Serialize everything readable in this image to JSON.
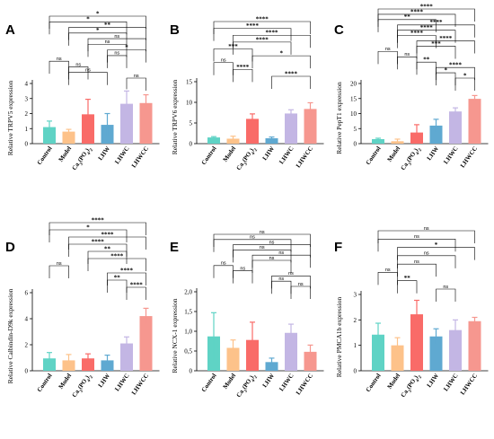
{
  "figure": {
    "colors": [
      "#5fd3c5",
      "#fdc28a",
      "#f96b68",
      "#5fa9d1",
      "#c3b6e4",
      "#f6978f"
    ]
  },
  "chart_data": [
    {
      "type": "bar",
      "panel": "A",
      "title": "",
      "ylabel": "Relative TRPV5 expression",
      "categories": [
        "Control",
        "Model",
        "Ca3(PO4)2",
        "LHW",
        "LHWC",
        "LHWCC"
      ],
      "values": [
        1.1,
        0.8,
        1.95,
        1.25,
        2.65,
        2.7
      ],
      "errors": [
        0.4,
        0.15,
        1.0,
        0.75,
        0.85,
        0.55
      ],
      "ylim": [
        0,
        4
      ],
      "yticks": [
        0,
        1,
        2,
        3,
        4
      ],
      "comparisons": [
        {
          "a": 0,
          "b": 5,
          "label": "*"
        },
        {
          "a": 0,
          "b": 4,
          "label": "*"
        },
        {
          "a": 1,
          "b": 5,
          "label": "**"
        },
        {
          "a": 1,
          "b": 4,
          "label": "*"
        },
        {
          "a": 2,
          "b": 5,
          "label": "ns"
        },
        {
          "a": 2,
          "b": 4,
          "label": "ns"
        },
        {
          "a": 3,
          "b": 5,
          "label": "*"
        },
        {
          "a": 3,
          "b": 4,
          "label": "ns"
        },
        {
          "a": 0,
          "b": 1,
          "label": "ns"
        },
        {
          "a": 1,
          "b": 2,
          "label": "ns"
        },
        {
          "a": 1,
          "b": 3,
          "label": "ns"
        },
        {
          "a": 4,
          "b": 5,
          "label": "ns"
        }
      ]
    },
    {
      "type": "bar",
      "panel": "B",
      "title": "",
      "ylabel": "Relative TRPV6 expression",
      "categories": [
        "Control",
        "Model",
        "Ca3(PO4)2",
        "LHW",
        "LHWC",
        "LHWCC"
      ],
      "values": [
        1.5,
        1.2,
        6.0,
        1.3,
        7.3,
        8.4
      ],
      "errors": [
        0.2,
        0.6,
        1.2,
        0.3,
        0.9,
        1.5
      ],
      "ylim": [
        0,
        15
      ],
      "yticks": [
        0,
        5,
        10,
        15
      ],
      "comparisons": [
        {
          "a": 0,
          "b": 5,
          "label": "****"
        },
        {
          "a": 0,
          "b": 4,
          "label": "****"
        },
        {
          "a": 1,
          "b": 5,
          "label": "****"
        },
        {
          "a": 1,
          "b": 4,
          "label": "****"
        },
        {
          "a": 0,
          "b": 2,
          "label": "***"
        },
        {
          "a": 2,
          "b": 5,
          "label": "*"
        },
        {
          "a": 0,
          "b": 1,
          "label": "ns"
        },
        {
          "a": 1,
          "b": 2,
          "label": "****"
        },
        {
          "a": 3,
          "b": 5,
          "label": "****"
        }
      ]
    },
    {
      "type": "bar",
      "panel": "C",
      "title": "",
      "ylabel": "Relative PepT1 expression",
      "categories": [
        "Control",
        "Model",
        "Ca3(PO4)2",
        "LHW",
        "LHWC",
        "LHWCC"
      ],
      "values": [
        1.5,
        0.8,
        3.7,
        6.0,
        10.7,
        14.9
      ],
      "errors": [
        0.3,
        0.7,
        2.6,
        2.1,
        1.2,
        1.1
      ],
      "ylim": [
        0,
        20
      ],
      "yticks": [
        0,
        5,
        10,
        15,
        20
      ],
      "comparisons": [
        {
          "a": 0,
          "b": 5,
          "label": "****"
        },
        {
          "a": 0,
          "b": 4,
          "label": "****"
        },
        {
          "a": 0,
          "b": 3,
          "label": "**"
        },
        {
          "a": 1,
          "b": 5,
          "label": "****"
        },
        {
          "a": 1,
          "b": 4,
          "label": "****"
        },
        {
          "a": 1,
          "b": 3,
          "label": "****"
        },
        {
          "a": 2,
          "b": 5,
          "label": "****"
        },
        {
          "a": 2,
          "b": 4,
          "label": "***"
        },
        {
          "a": 0,
          "b": 1,
          "label": "ns"
        },
        {
          "a": 1,
          "b": 2,
          "label": "ns"
        },
        {
          "a": 2,
          "b": 3,
          "label": "**"
        },
        {
          "a": 3,
          "b": 5,
          "label": "****"
        },
        {
          "a": 3,
          "b": 4,
          "label": "*"
        },
        {
          "a": 4,
          "b": 5,
          "label": "*"
        }
      ]
    },
    {
      "type": "bar",
      "panel": "D",
      "title": "",
      "ylabel": "Relative Calbindin-D9k expression",
      "categories": [
        "Control",
        "Model",
        "Ca3(PO4)2",
        "LHW",
        "LHWC",
        "LHWCC"
      ],
      "values": [
        0.95,
        0.8,
        0.95,
        0.8,
        2.1,
        4.2
      ],
      "errors": [
        0.45,
        0.45,
        0.35,
        0.4,
        0.5,
        0.6
      ],
      "ylim": [
        0,
        6
      ],
      "yticks": [
        0,
        2,
        4,
        6
      ],
      "comparisons": [
        {
          "a": 0,
          "b": 5,
          "label": "****"
        },
        {
          "a": 0,
          "b": 4,
          "label": "*"
        },
        {
          "a": 1,
          "b": 5,
          "label": "****"
        },
        {
          "a": 1,
          "b": 4,
          "label": "****"
        },
        {
          "a": 2,
          "b": 4,
          "label": "**"
        },
        {
          "a": 2,
          "b": 5,
          "label": "****"
        },
        {
          "a": 0,
          "b": 1,
          "label": "ns"
        },
        {
          "a": 3,
          "b": 5,
          "label": "****"
        },
        {
          "a": 3,
          "b": 4,
          "label": "**"
        },
        {
          "a": 4,
          "b": 5,
          "label": "****"
        }
      ]
    },
    {
      "type": "bar",
      "panel": "E",
      "title": "",
      "ylabel": "Relative NCX-1 expression",
      "categories": [
        "Control",
        "Model",
        "Ca3(PO4)2",
        "LHW",
        "LHWC",
        "LHWCC"
      ],
      "values": [
        0.87,
        0.58,
        0.78,
        0.22,
        0.96,
        0.48
      ],
      "errors": [
        0.6,
        0.2,
        0.45,
        0.1,
        0.22,
        0.17
      ],
      "ylim": [
        0,
        2.0
      ],
      "yticks": [
        0,
        0.5,
        1.0,
        1.5,
        2.0
      ],
      "yticklabels": [
        "0",
        "0,5",
        "1,0",
        "1,5",
        "2,0"
      ],
      "comparisons": [
        {
          "a": 0,
          "b": 5,
          "label": "ns"
        },
        {
          "a": 0,
          "b": 4,
          "label": "ns"
        },
        {
          "a": 1,
          "b": 5,
          "label": "ns"
        },
        {
          "a": 1,
          "b": 4,
          "label": "ns"
        },
        {
          "a": 2,
          "b": 5,
          "label": "ns"
        },
        {
          "a": 2,
          "b": 4,
          "label": "ns"
        },
        {
          "a": 0,
          "b": 1,
          "label": "ns"
        },
        {
          "a": 1,
          "b": 2,
          "label": "ns"
        },
        {
          "a": 3,
          "b": 5,
          "label": "ns"
        },
        {
          "a": 3,
          "b": 4,
          "label": "ns"
        },
        {
          "a": 4,
          "b": 5,
          "label": "ns"
        }
      ]
    },
    {
      "type": "bar",
      "panel": "F",
      "title": "",
      "ylabel": "Relative PMCA1b expression",
      "categories": [
        "Control",
        "Model",
        "Ca3(PO4)2",
        "LHW",
        "LHWC",
        "LHWCC"
      ],
      "values": [
        1.42,
        1.0,
        2.22,
        1.35,
        1.6,
        1.95
      ],
      "errors": [
        0.45,
        0.3,
        0.55,
        0.3,
        0.4,
        0.15
      ],
      "ylim": [
        0,
        3
      ],
      "yticks": [
        0,
        1,
        2,
        3
      ],
      "comparisons": [
        {
          "a": 0,
          "b": 5,
          "label": "ns"
        },
        {
          "a": 0,
          "b": 4,
          "label": "ns"
        },
        {
          "a": 1,
          "b": 5,
          "label": "*"
        },
        {
          "a": 1,
          "b": 4,
          "label": "ns"
        },
        {
          "a": 1,
          "b": 3,
          "label": "ns"
        },
        {
          "a": 0,
          "b": 1,
          "label": "ns"
        },
        {
          "a": 1,
          "b": 2,
          "label": "**"
        },
        {
          "a": 3,
          "b": 4,
          "label": "ns"
        }
      ]
    }
  ]
}
